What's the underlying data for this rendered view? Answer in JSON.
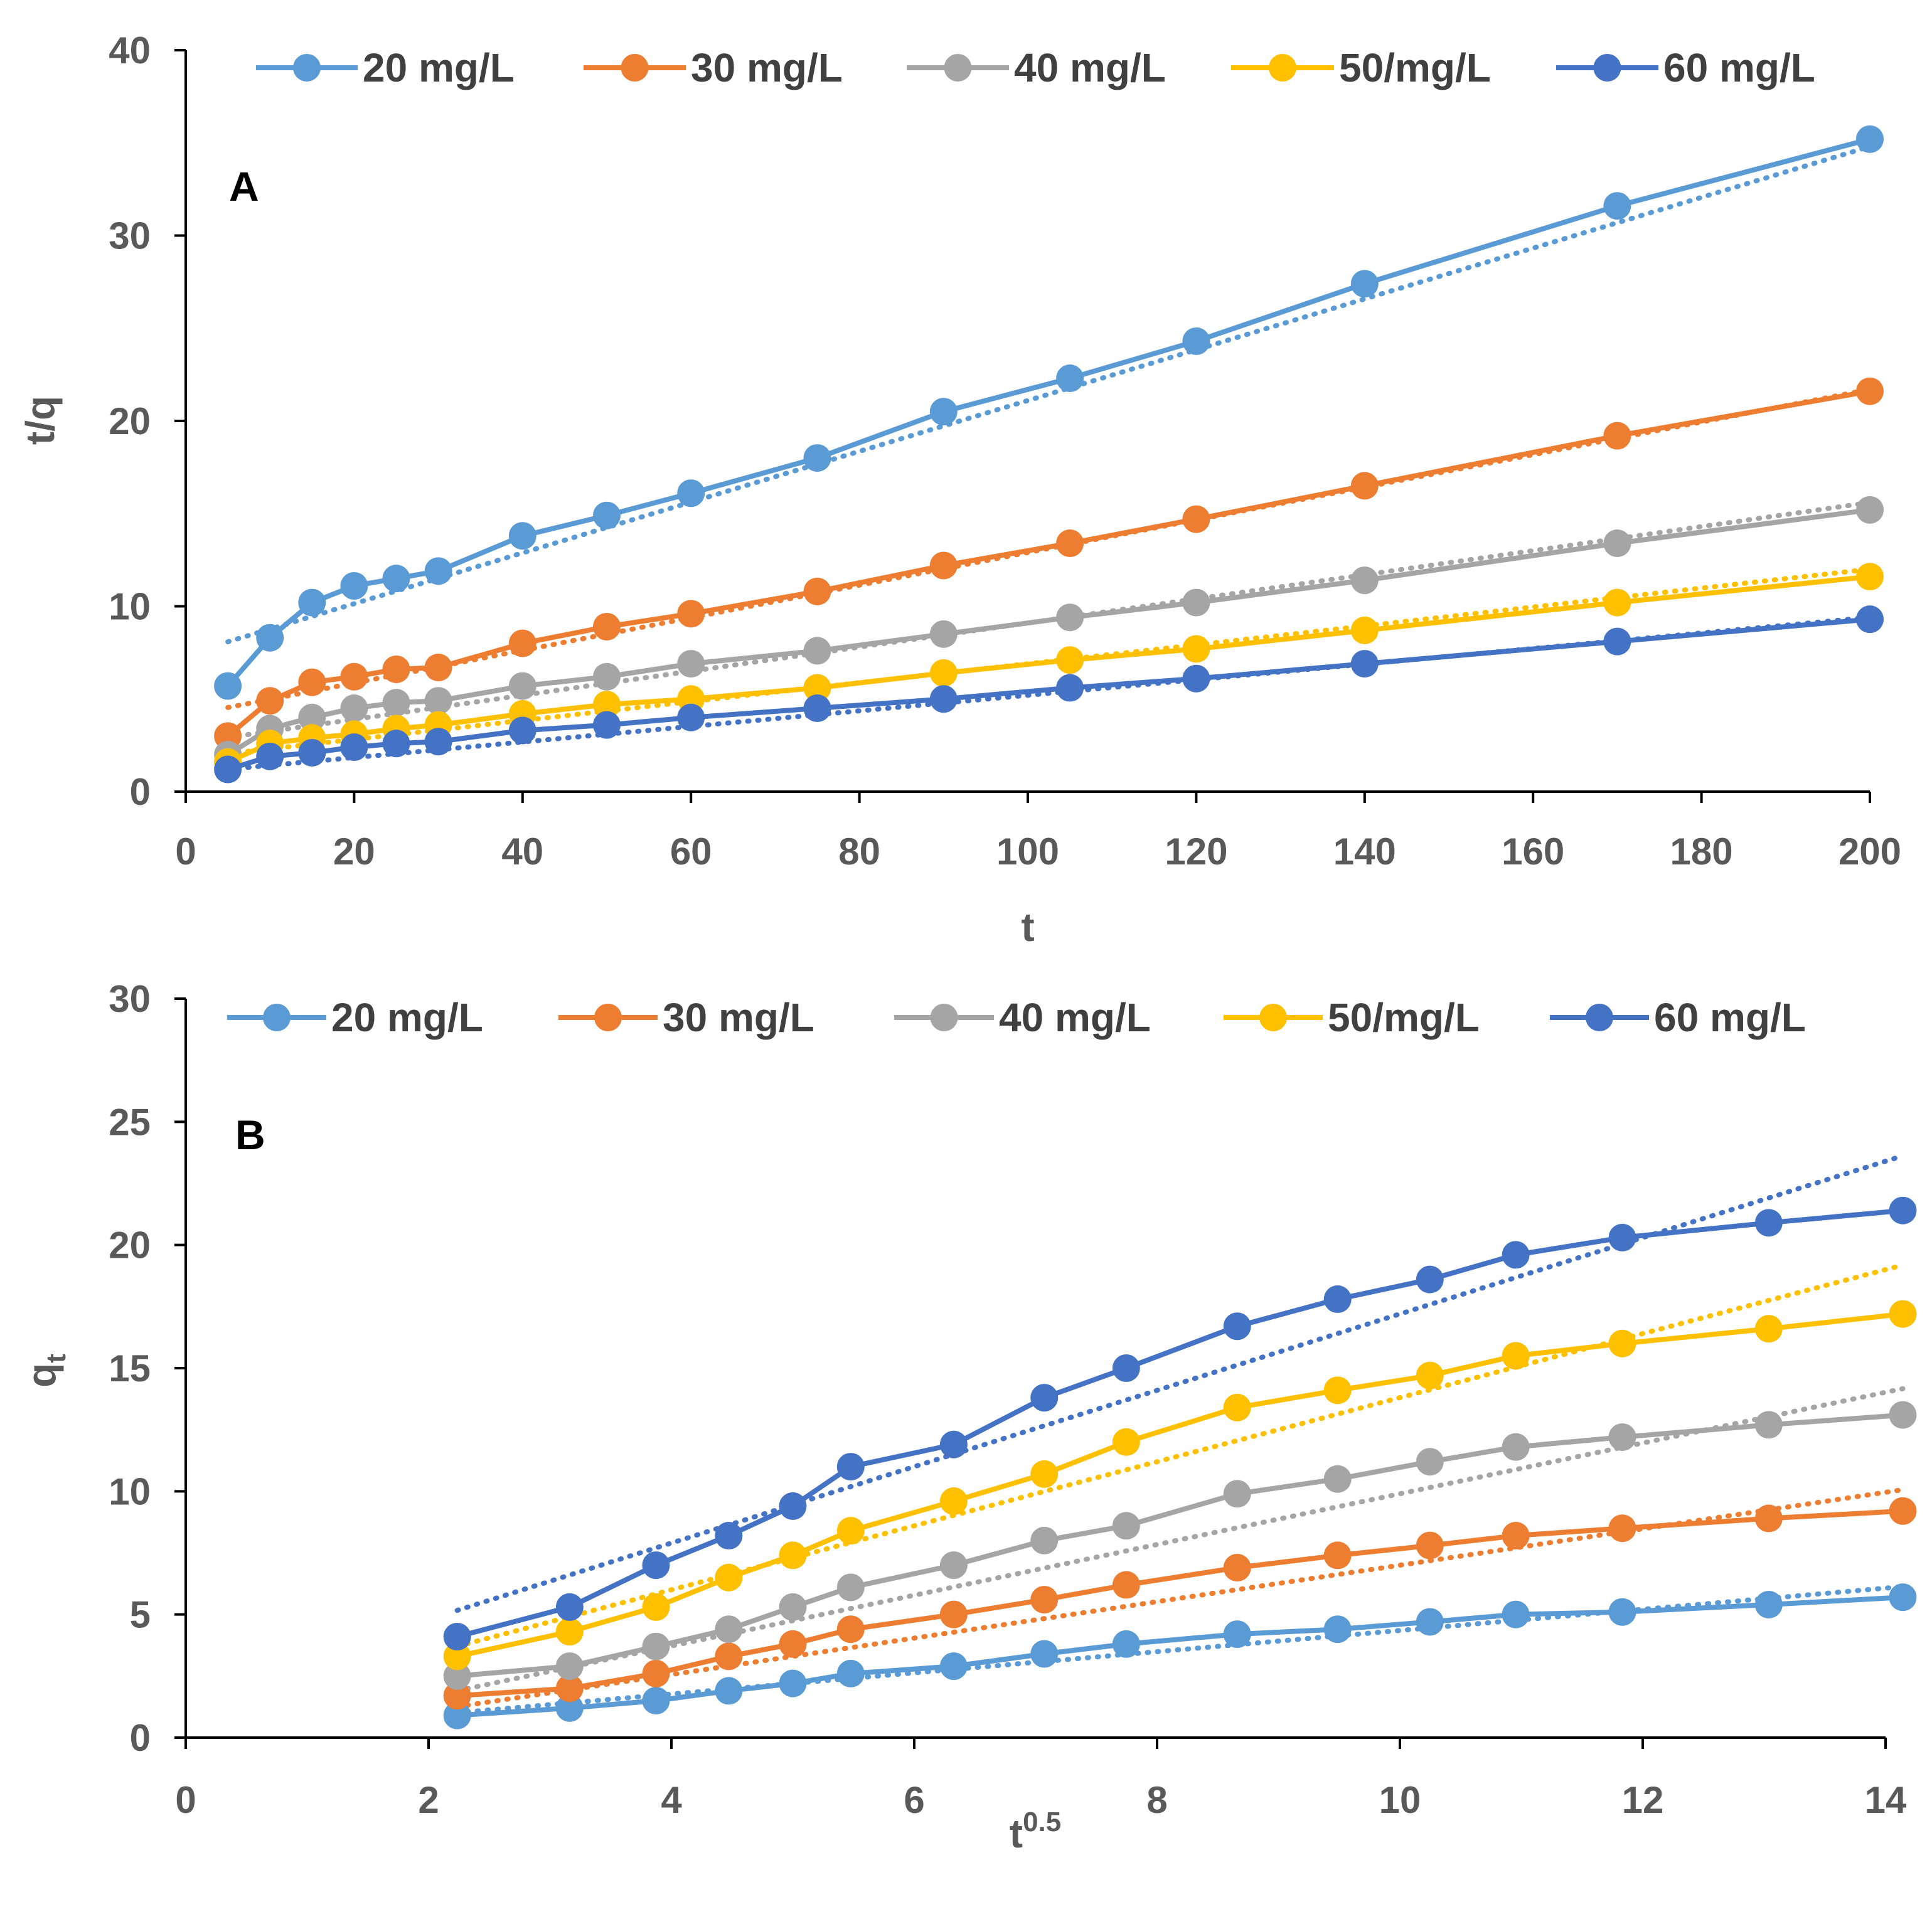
{
  "chart_data": [
    {
      "type": "line",
      "panel_label": "A",
      "title": "",
      "xlabel": "t",
      "ylabel": "t/q",
      "xlim": [
        0,
        200
      ],
      "ylim": [
        0,
        40
      ],
      "x_ticks": [
        0,
        20,
        40,
        60,
        80,
        100,
        120,
        140,
        160,
        180,
        200
      ],
      "y_ticks": [
        0,
        10,
        20,
        30,
        40
      ],
      "legend_position": "top",
      "x": [
        5,
        10,
        15,
        20,
        25,
        30,
        40,
        50,
        60,
        75,
        90,
        105,
        120,
        140,
        170,
        200
      ],
      "series": [
        {
          "name": "20 mg/L",
          "color": "#5B9BD5",
          "values": [
            5.7,
            8.3,
            10.2,
            11.1,
            11.5,
            11.9,
            13.8,
            14.9,
            16.1,
            18.0,
            20.5,
            22.3,
            24.3,
            27.4,
            31.6,
            35.2
          ],
          "trend": [
            0.137,
            7.4
          ]
        },
        {
          "name": "30 mg/L",
          "color": "#ED7D31",
          "values": [
            3.0,
            4.9,
            5.9,
            6.2,
            6.6,
            6.7,
            8.0,
            8.9,
            9.6,
            10.8,
            12.2,
            13.4,
            14.7,
            16.5,
            19.2,
            21.6
          ],
          "trend": [
            0.088,
            4.1
          ]
        },
        {
          "name": "40 mg/L",
          "color": "#A5A5A5",
          "values": [
            2.0,
            3.4,
            4.0,
            4.5,
            4.8,
            4.9,
            5.7,
            6.2,
            6.9,
            7.6,
            8.5,
            9.4,
            10.2,
            11.4,
            13.4,
            15.2
          ],
          "trend": [
            0.065,
            2.6
          ]
        },
        {
          "name": "50/mg/L",
          "color": "#FFC000",
          "values": [
            1.6,
            2.6,
            2.9,
            3.1,
            3.4,
            3.6,
            4.2,
            4.7,
            5.0,
            5.6,
            6.4,
            7.1,
            7.7,
            8.7,
            10.2,
            11.6
          ],
          "trend": [
            0.051,
            1.8
          ]
        },
        {
          "name": "60 mg/L",
          "color": "#4472C4",
          "values": [
            1.2,
            1.9,
            2.1,
            2.4,
            2.6,
            2.7,
            3.3,
            3.6,
            4.0,
            4.5,
            5.0,
            5.6,
            6.1,
            6.9,
            8.1,
            9.3
          ],
          "trend": [
            0.042,
            1.0
          ]
        }
      ]
    },
    {
      "type": "line",
      "panel_label": "B",
      "title": "",
      "xlabel": "t",
      "xlabel_sup": "0.5",
      "ylabel": "q",
      "ylabel_sub": "t",
      "xlim": [
        0,
        14
      ],
      "ylim": [
        0,
        30
      ],
      "x_ticks": [
        0,
        2,
        4,
        6,
        8,
        10,
        12,
        14
      ],
      "y_ticks": [
        0,
        5,
        10,
        15,
        20,
        25,
        30
      ],
      "legend_position": "top",
      "x": [
        2.236,
        3.162,
        3.873,
        4.472,
        5.0,
        5.477,
        6.325,
        7.071,
        7.746,
        8.66,
        9.487,
        10.247,
        10.954,
        11.832,
        13.038,
        14.142
      ],
      "series": [
        {
          "name": "20 mg/L",
          "color": "#5B9BD5",
          "values": [
            0.9,
            1.2,
            1.5,
            1.9,
            2.2,
            2.6,
            2.9,
            3.4,
            3.8,
            4.2,
            4.4,
            4.7,
            5.0,
            5.1,
            5.4,
            5.7
          ],
          "trend": [
            0.43,
            0.05
          ]
        },
        {
          "name": "30 mg/L",
          "color": "#ED7D31",
          "values": [
            1.7,
            2.0,
            2.6,
            3.3,
            3.8,
            4.4,
            5.0,
            5.6,
            6.2,
            6.9,
            7.4,
            7.8,
            8.2,
            8.5,
            8.9,
            9.2
          ],
          "trend": [
            0.74,
            -0.4
          ]
        },
        {
          "name": "40 mg/L",
          "color": "#A5A5A5",
          "values": [
            2.5,
            2.9,
            3.7,
            4.4,
            5.3,
            6.1,
            7.0,
            8.0,
            8.6,
            9.9,
            10.5,
            11.2,
            11.8,
            12.2,
            12.7,
            13.1
          ],
          "trend": [
            1.03,
            -0.4
          ]
        },
        {
          "name": "50/mg/L",
          "color": "#FFC000",
          "values": [
            3.3,
            4.3,
            5.3,
            6.5,
            7.4,
            8.4,
            9.6,
            10.7,
            12.0,
            13.4,
            14.1,
            14.7,
            15.5,
            16.0,
            16.6,
            17.2
          ],
          "trend": [
            1.3,
            0.8
          ]
        },
        {
          "name": "60 mg/L",
          "color": "#4472C4",
          "values": [
            4.1,
            5.3,
            7.0,
            8.2,
            9.4,
            11.0,
            11.9,
            13.8,
            15.0,
            16.7,
            17.8,
            18.6,
            19.6,
            20.3,
            20.9,
            21.4
          ],
          "trend": [
            1.55,
            1.7
          ]
        }
      ]
    }
  ]
}
